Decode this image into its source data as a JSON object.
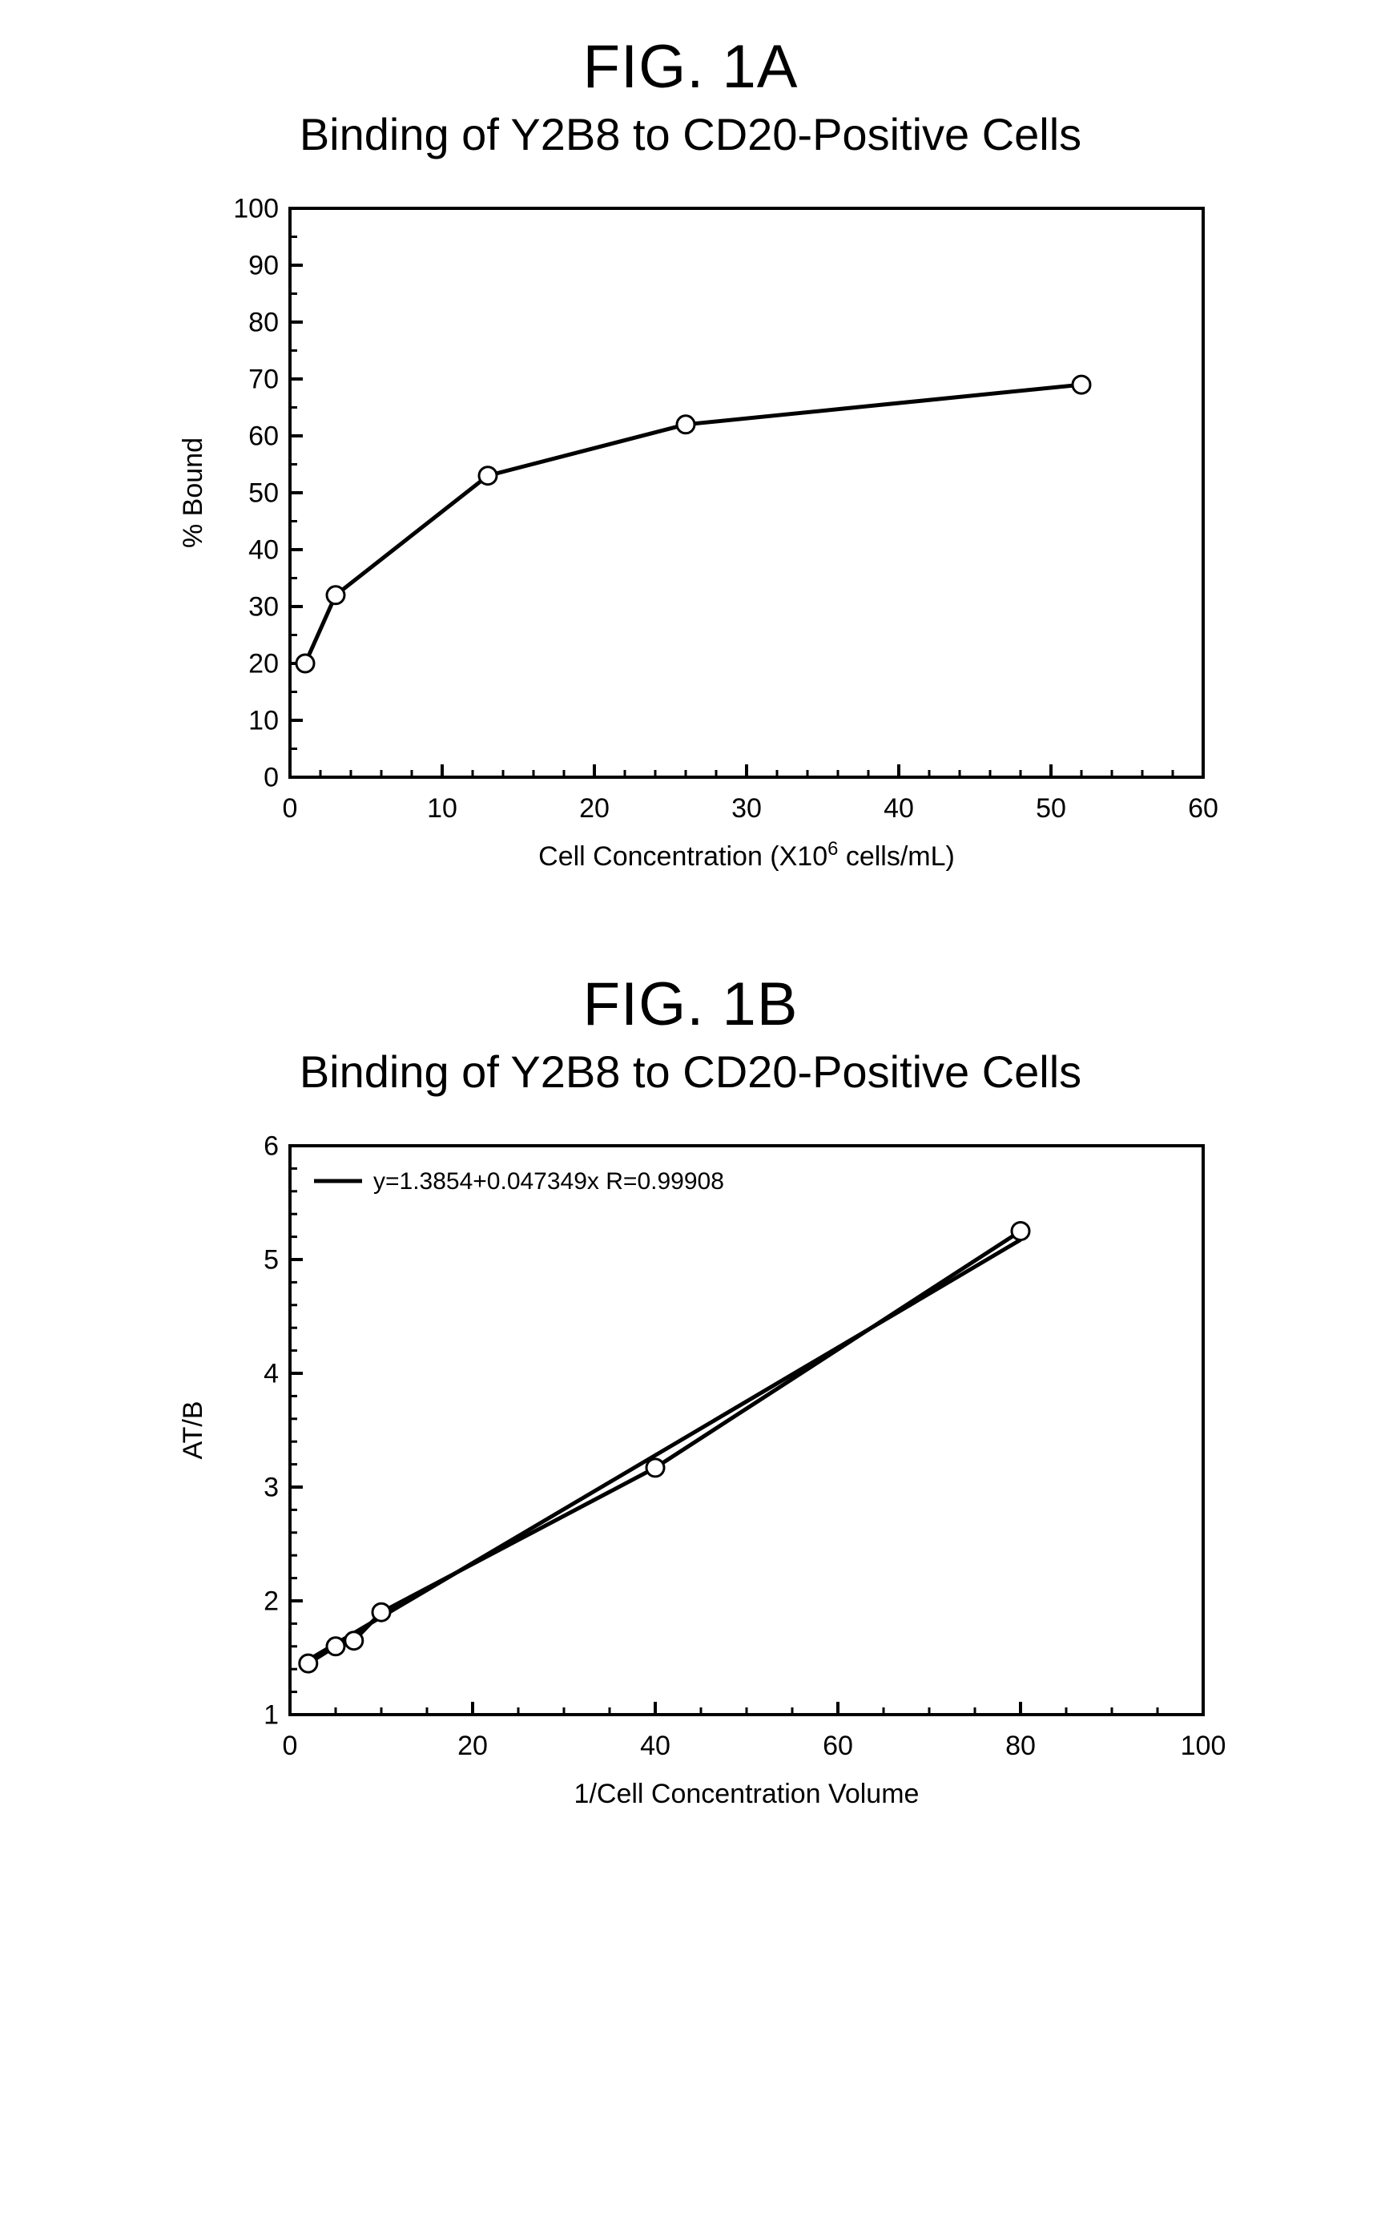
{
  "fig_a": {
    "fig_label": "FIG. 1A",
    "title": "Binding of Y2B8 to CD20-Positive Cells",
    "type": "line",
    "xlabel_prefix": "Cell Concentration (X10",
    "xlabel_super": "6",
    "xlabel_suffix": " cells/mL)",
    "ylabel": "% Bound",
    "xlim": [
      0,
      60
    ],
    "ylim": [
      0,
      100
    ],
    "xtick_step": 10,
    "ytick_step": 10,
    "xtick_minor_count": 5,
    "ytick_minor_count": 2,
    "line_color": "#000000",
    "line_width": 5,
    "marker_style": "circle",
    "marker_size": 11,
    "marker_fill": "#ffffff",
    "marker_stroke": "#000000",
    "marker_stroke_width": 3,
    "axis_color": "#000000",
    "axis_width": 4,
    "tick_len_major": 16,
    "tick_len_minor": 9,
    "background_color": "#ffffff",
    "axis_fontsize": 34,
    "tick_fontsize": 34,
    "data": [
      {
        "x": 1,
        "y": 20
      },
      {
        "x": 3,
        "y": 32
      },
      {
        "x": 13,
        "y": 53
      },
      {
        "x": 26,
        "y": 62
      },
      {
        "x": 52,
        "y": 69
      }
    ]
  },
  "fig_b": {
    "fig_label": "FIG. 1B",
    "title": "Binding of Y2B8 to CD20-Positive Cells",
    "type": "line",
    "xlabel": "1/Cell Concentration Volume",
    "ylabel": "AT/B",
    "xlim": [
      0,
      100
    ],
    "ylim": [
      1,
      6
    ],
    "xtick_step": 20,
    "ytick_step": 1,
    "xtick_minor_count": 4,
    "ytick_minor_count": 5,
    "line_color": "#000000",
    "line_width": 5,
    "marker_style": "circle",
    "marker_size": 11,
    "marker_fill": "#ffffff",
    "marker_stroke": "#000000",
    "marker_stroke_width": 3,
    "axis_color": "#000000",
    "axis_width": 4,
    "tick_len_major": 16,
    "tick_len_minor": 9,
    "background_color": "#ffffff",
    "axis_fontsize": 34,
    "tick_fontsize": 34,
    "legend_text": "y=1.3854+0.047349x  R=0.99908",
    "legend_fontsize": 30,
    "legend_line_len": 60,
    "fit_intercept": 1.3854,
    "fit_slope": 0.047349,
    "data": [
      {
        "x": 2,
        "y": 1.45
      },
      {
        "x": 5,
        "y": 1.6
      },
      {
        "x": 7,
        "y": 1.65
      },
      {
        "x": 10,
        "y": 1.9
      },
      {
        "x": 40,
        "y": 3.17
      },
      {
        "x": 80,
        "y": 5.25
      }
    ]
  }
}
